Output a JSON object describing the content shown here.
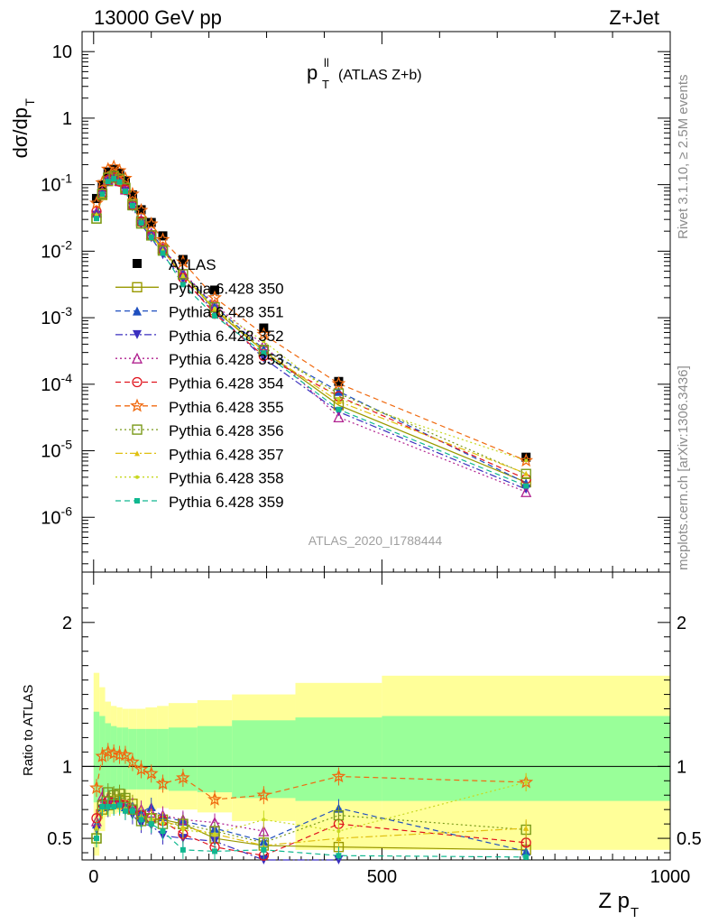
{
  "header": {
    "left": "13000 GeV pp",
    "right": "Z+Jet"
  },
  "plot_title": {
    "main": "p",
    "sup": "ll",
    "sub": "T",
    "suffix": "(ATLAS Z+b)"
  },
  "side_labels": {
    "rivet": "Rivet 3.1.10, ≥ 2.5M events",
    "mcplots": "mcplots.cern.ch [arXiv:1306.3436]"
  },
  "analysis_id": "ATLAS_2020_I1788444",
  "axes": {
    "upper_ylabel": {
      "main": "dσ/dp",
      "sub": "T"
    },
    "lower_ylabel": "Ratio to ATLAS",
    "xlabel": {
      "main": "Z p",
      "sub": "T"
    }
  },
  "colors": {
    "ATLAS": "#000000",
    "350": "#999900",
    "351": "#1f4fbf",
    "352": "#3a2fbf",
    "353": "#b0208f",
    "354": "#e0141e",
    "355": "#f06a10",
    "356": "#7a9a1a",
    "357": "#e0c010",
    "358": "#c8d820",
    "359": "#10b890",
    "band_inner": "#99ff99",
    "band_outer": "#ffff99"
  },
  "chart_data": {
    "type": "line",
    "x_unit": "Z p_T",
    "xlim": [
      -20,
      1000
    ],
    "upper": {
      "yscale": "log",
      "ylim": [
        1.5e-07,
        20
      ],
      "yticks": [
        "10",
        "1",
        "10^-1",
        "10^-2",
        "10^-3",
        "10^-4",
        "10^-5",
        "10^-6"
      ]
    },
    "lower": {
      "ylim": [
        0.35,
        2.35
      ],
      "yticks": [
        0.5,
        1,
        2
      ]
    },
    "xticks": [
      0,
      500,
      1000
    ],
    "x": [
      5,
      15,
      25,
      35,
      45,
      55,
      67.5,
      82.5,
      100,
      120,
      155,
      210,
      295,
      425,
      750
    ],
    "bin_edges": [
      0,
      10,
      20,
      30,
      40,
      50,
      60,
      75,
      90,
      110,
      130,
      180,
      240,
      350,
      500,
      1000
    ],
    "atlas": [
      0.062,
      0.1,
      0.155,
      0.17,
      0.15,
      0.115,
      0.07,
      0.042,
      0.027,
      0.017,
      0.0075,
      0.0026,
      0.0007,
      0.00011,
      8e-06
    ],
    "band_inner": [
      [
        0.75,
        1.38
      ],
      [
        0.78,
        1.35
      ],
      [
        0.82,
        1.3
      ],
      [
        0.83,
        1.28
      ],
      [
        0.84,
        1.27
      ],
      [
        0.84,
        1.27
      ],
      [
        0.84,
        1.26
      ],
      [
        0.84,
        1.26
      ],
      [
        0.84,
        1.26
      ],
      [
        0.84,
        1.26
      ],
      [
        0.83,
        1.27
      ],
      [
        0.82,
        1.28
      ],
      [
        0.78,
        1.32
      ],
      [
        0.76,
        1.34
      ],
      [
        0.76,
        1.35
      ]
    ],
    "band_outer": [
      [
        0.38,
        1.65
      ],
      [
        0.55,
        1.55
      ],
      [
        0.65,
        1.45
      ],
      [
        0.67,
        1.42
      ],
      [
        0.68,
        1.41
      ],
      [
        0.69,
        1.4
      ],
      [
        0.7,
        1.4
      ],
      [
        0.7,
        1.4
      ],
      [
        0.7,
        1.41
      ],
      [
        0.71,
        1.42
      ],
      [
        0.7,
        1.44
      ],
      [
        0.68,
        1.46
      ],
      [
        0.62,
        1.5
      ],
      [
        0.42,
        1.58
      ],
      [
        0.42,
        1.63
      ]
    ],
    "series": [
      {
        "name": "ATLAS",
        "key": "ATLAS",
        "marker": "square-filled",
        "line": "none"
      },
      {
        "name": "Pythia 6.428 350",
        "key": "350",
        "marker": "square-open",
        "line": "solid",
        "ratio": [
          0.5,
          0.7,
          0.73,
          0.76,
          0.77,
          0.76,
          0.74,
          0.66,
          0.64,
          0.63,
          0.6,
          0.5,
          0.45,
          0.44,
          0.42
        ]
      },
      {
        "name": "Pythia 6.428 351",
        "key": "351",
        "marker": "triangle-up",
        "line": "dashed",
        "ratio": [
          0.6,
          0.72,
          0.75,
          0.75,
          0.74,
          0.72,
          0.7,
          0.68,
          0.72,
          0.65,
          0.62,
          0.57,
          0.48,
          0.71,
          0.41
        ]
      },
      {
        "name": "Pythia 6.428 352",
        "key": "352",
        "marker": "triangle-down",
        "line": "dashdot",
        "ratio": [
          0.56,
          0.7,
          0.71,
          0.73,
          0.72,
          0.69,
          0.66,
          0.6,
          0.59,
          0.52,
          0.5,
          0.48,
          0.35,
          0.35,
          0.33
        ]
      },
      {
        "name": "Pythia 6.428 353",
        "key": "353",
        "marker": "triangle-open",
        "line": "dotted",
        "ratio": [
          0.62,
          0.79,
          0.78,
          0.77,
          0.76,
          0.74,
          0.72,
          0.7,
          0.68,
          0.66,
          0.63,
          0.61,
          0.55,
          0.29,
          0.3
        ]
      },
      {
        "name": "Pythia 6.428 354",
        "key": "354",
        "marker": "circle-open",
        "line": "dashed",
        "ratio": [
          0.64,
          0.74,
          0.76,
          0.75,
          0.74,
          0.73,
          0.7,
          0.66,
          0.64,
          0.62,
          0.53,
          0.44,
          0.38,
          0.6,
          0.47
        ]
      },
      {
        "name": "Pythia 6.428 355",
        "key": "355",
        "marker": "star-open",
        "line": "dashed",
        "ratio": [
          0.85,
          1.07,
          1.1,
          1.09,
          1.08,
          1.08,
          1.03,
          0.98,
          0.95,
          0.88,
          0.92,
          0.77,
          0.8,
          0.93,
          0.89
        ]
      },
      {
        "name": "Pythia 6.428 356",
        "key": "356",
        "marker": "square-open",
        "line": "dotted",
        "ratio": [
          0.5,
          0.73,
          0.82,
          0.8,
          0.81,
          0.78,
          0.7,
          0.62,
          0.64,
          0.6,
          0.6,
          0.55,
          0.47,
          0.66,
          0.56
        ]
      },
      {
        "name": "Pythia 6.428 357",
        "key": "357",
        "marker": "tri-small",
        "line": "dashdot",
        "ratio": [
          0.58,
          0.7,
          0.72,
          0.73,
          0.72,
          0.71,
          0.7,
          0.66,
          0.64,
          0.62,
          0.58,
          0.53,
          0.45,
          0.5,
          0.57
        ]
      },
      {
        "name": "Pythia 6.428 358",
        "key": "358",
        "marker": "dot-small",
        "line": "dotted",
        "ratio": [
          0.56,
          0.7,
          0.72,
          0.74,
          0.73,
          0.71,
          0.69,
          0.64,
          0.63,
          0.6,
          0.56,
          0.53,
          0.63,
          0.55,
          0.89
        ]
      },
      {
        "name": "Pythia 6.428 359",
        "key": "359",
        "marker": "square-small",
        "line": "dashed",
        "ratio": [
          0.5,
          0.72,
          0.72,
          0.72,
          0.73,
          0.69,
          0.69,
          0.63,
          0.6,
          0.55,
          0.42,
          0.41,
          0.42,
          0.38,
          0.37
        ]
      }
    ]
  }
}
